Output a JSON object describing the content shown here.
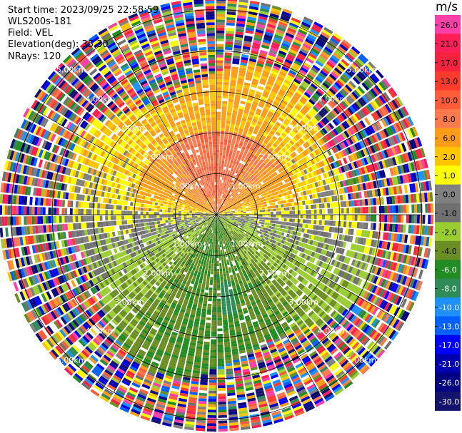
{
  "header": {
    "start_time": "Start time: 2023/09/25 22:58:59",
    "instrument": "WLS200s-181",
    "field": "Field: VEL",
    "elevation": "Elevation(deg): 35.30",
    "nrays": "NRays: 120"
  },
  "chart_data": {
    "type": "heatmap",
    "subtype": "ppi-polar",
    "nrays": 120,
    "range_rings_km": [
      1.0,
      2.0,
      3.0,
      4.0,
      5.0
    ],
    "ring_labels": [
      "1.00km",
      "2.00km",
      "3.00km",
      "4.00km",
      "5.00km"
    ],
    "max_range_km": 5.4,
    "colorbar": {
      "unit": "m/s",
      "tick_labels": [
        "26.0",
        "21.0",
        "17.0",
        "13.0",
        "10.0",
        "8.0",
        "6.0",
        "2.0",
        "1.0",
        "0.0",
        "-1.0",
        "-2.0",
        "-4.0",
        "-6.0",
        "-8.0",
        "-10.0",
        "-13.0",
        "-17.0",
        "-21.0",
        "-26.0",
        "-30.0"
      ],
      "colors": [
        "#ff3fa8",
        "#ff1e56",
        "#f7223c",
        "#ff3b2e",
        "#ff5c3a",
        "#ff7a4d",
        "#ff9c1a",
        "#ffc500",
        "#ffff00",
        "#808080",
        "#707070",
        "#9acd32",
        "#6b8e23",
        "#228b22",
        "#2e8b57",
        "#1e90ff",
        "#0060ff",
        "#0000ff",
        "#0000b0",
        "#000080",
        "#14146e"
      ]
    },
    "velocity_pattern": "positive (receding) in the north sector, near zero along east-west axis, negative (approaching) in the south sector; noisy multicolour returns beyond ~3.5 km"
  }
}
